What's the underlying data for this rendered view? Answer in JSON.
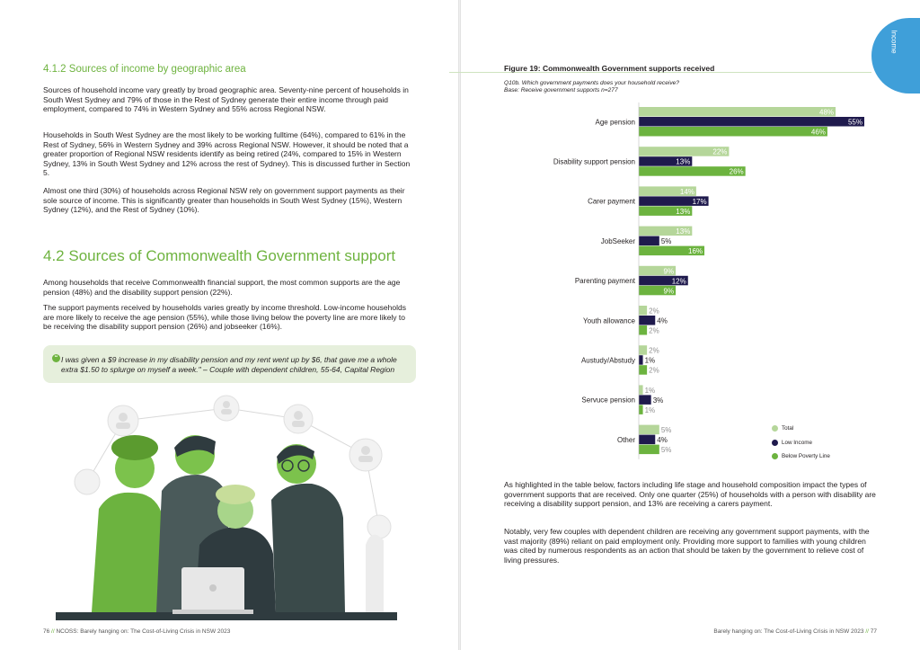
{
  "left": {
    "subheading": "4.1.2 Sources of income by geographic area",
    "paragraphs": [
      "Sources of household income vary greatly by broad geographic area. Seventy-nine percent of households in South West Sydney and 79% of those in the Rest of Sydney generate their entire income through paid employment, compared to 74% in Western Sydney and 55% across Regional NSW.",
      "Households in South West Sydney are the most likely to be working fulltime (64%), compared to 61% in the Rest of Sydney, 56% in Western Sydney and 39% across Regional NSW. However, it should be noted that a greater proportion of Regional NSW residents identify as being retired (24%, compared to 15% in Western Sydney, 13% in South West Sydney and 12% across the rest of Sydney). This is discussed further in Section 5.",
      "Almost one third (30%) of households across Regional NSW rely on government support payments as their sole source of income. This is significantly greater than households in South West Sydney (15%), Western Sydney (12%), and the Rest of Sydney (10%)."
    ],
    "heading": "4.2 Sources of Commonwealth Government support",
    "paragraphs2": [
      "Among households that receive Commonwealth financial support, the most common supports are the age pension (48%) and the disability support pension (22%).",
      "The support payments received by households varies greatly by income threshold. Low-income households are more likely to receive the age pension (55%), while those living below the poverty line are more likely to be receiving the disability support pension (26%) and jobseeker (16%)."
    ],
    "quote": "I was given a $9 increase in my disability pension and my rent went up by $6, that gave me a whole extra $1.50 to splurge on myself a week.\" – Couple with dependent children, 55-64, Capital Region",
    "quote_icon": "quote-icon",
    "footer": {
      "page": "76",
      "sep": "//",
      "text": "NCOSS: Barely hanging on: The Cost-of-Living Crisis in NSW 2023"
    }
  },
  "right": {
    "tab_label": "Income",
    "figure_title": "Figure 19: Commonwealth Government supports received",
    "question": "Q10b. Which government payments does your household receive?",
    "base": "Base: Receive government supports n=277",
    "paragraphs": [
      "As highlighted in the table below, factors including life stage and household composition impact the types of government supports that are received. Only one quarter (25%) of households with a person with disability are receiving a disability support pension, and 13% are receiving a carers payment.",
      "Notably, very few couples with dependent children are receiving any government support payments, with the vast majority (89%) reliant on paid employment only. Providing more support to families with young children was cited by numerous respondents as an action that should be taken by the government to relieve cost of living pressures."
    ],
    "footer": {
      "text": "Barely hanging on: The Cost-of-Living Crisis in NSW 2023",
      "sep": "//",
      "page": "77"
    }
  },
  "colors": {
    "total": "#b5d69a",
    "low_income": "#1f1a4d",
    "below_poverty": "#6cb33f",
    "accent_green": "#6eb33f",
    "tab_blue": "#3f9fd9"
  },
  "chart_data": {
    "type": "bar",
    "orientation": "horizontal",
    "title": "Figure 19: Commonwealth Government supports received",
    "categories": [
      "Age pension",
      "Disability support pension",
      "Carer payment",
      "JobSeeker",
      "Parenting payment",
      "Youth allowance",
      "Austudy/Abstudy",
      "Servuce pension",
      "Other"
    ],
    "series": [
      {
        "name": "Total",
        "values": [
          48,
          22,
          14,
          13,
          9,
          2,
          2,
          1,
          5
        ]
      },
      {
        "name": "Low Income",
        "values": [
          55,
          13,
          17,
          5,
          12,
          4,
          1,
          3,
          4
        ]
      },
      {
        "name": "Below Poverty Line",
        "values": [
          46,
          26,
          13,
          16,
          9,
          2,
          2,
          1,
          5
        ]
      }
    ],
    "value_suffix": "%",
    "xlim": [
      0,
      55
    ],
    "grid": false,
    "legend": "bottom-right"
  }
}
